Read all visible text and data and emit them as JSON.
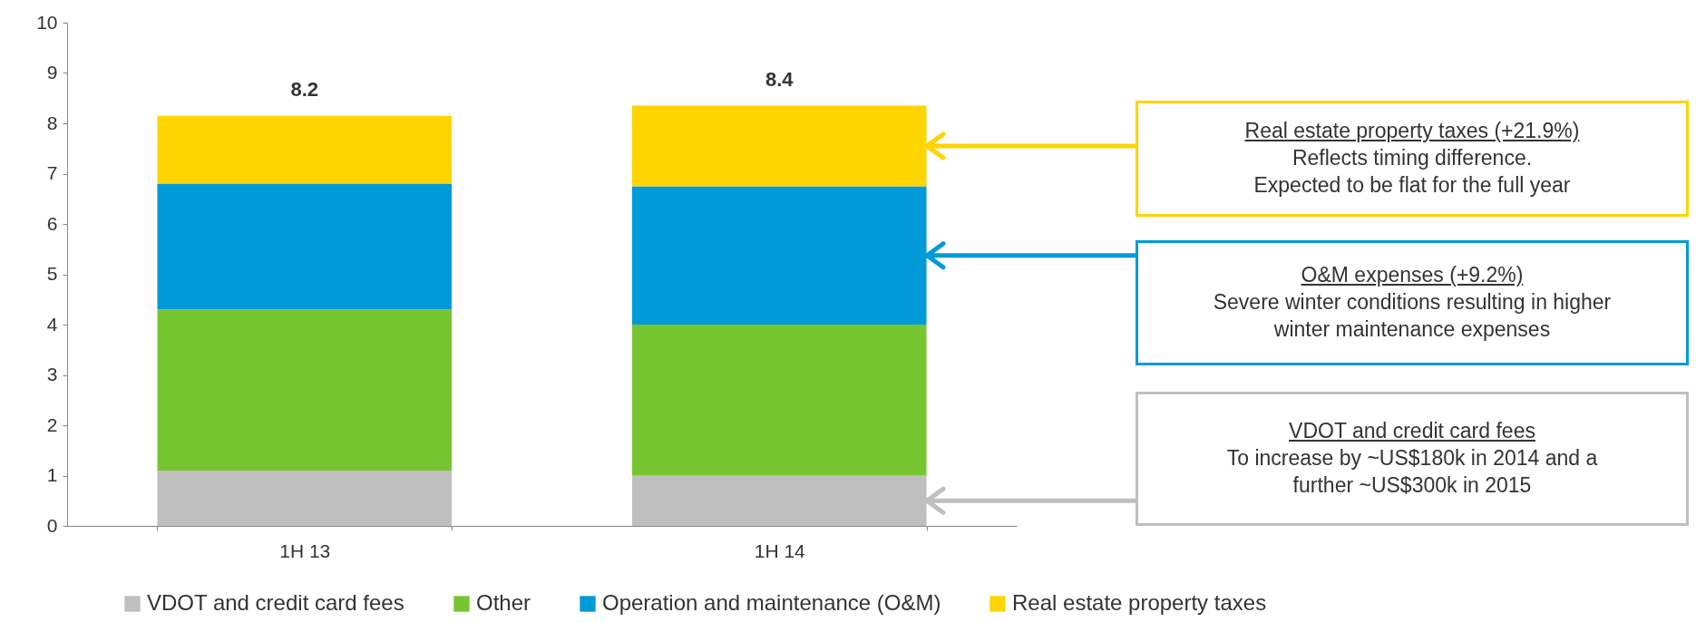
{
  "chart_data": {
    "type": "bar",
    "stacked": true,
    "categories": [
      "1H 13",
      "1H 14"
    ],
    "series": [
      {
        "name": "VDOT and credit card fees",
        "color": "#bfbfbf",
        "values": [
          1.1,
          1.0
        ]
      },
      {
        "name": "Other",
        "color": "#77c531",
        "values": [
          3.2,
          3.0
        ]
      },
      {
        "name": "Operation and maintenance (O&M)",
        "color": "#009ad9",
        "values": [
          2.5,
          2.75
        ]
      },
      {
        "name": "Real estate property taxes",
        "color": "#ffd400",
        "values": [
          1.35,
          1.6
        ]
      }
    ],
    "totals": [
      "8.2",
      "8.4"
    ],
    "ylim": [
      0,
      10
    ],
    "yticks": [
      0,
      1,
      2,
      3,
      4,
      5,
      6,
      7,
      8,
      9,
      10
    ],
    "grid": false,
    "legend": "bottom",
    "annotations": [
      "Real estate property taxes (+21.9%)\nReflects timing difference.\nExpected to be flat for the full year",
      "O&M expenses (+9.2%)\nSevere winter conditions resulting in higher\nwinter maintenance expenses",
      "VDOT and credit card fees\nTo increase by ~US$180k in 2014 and a\nfurther ~US$300k in 2015"
    ]
  }
}
